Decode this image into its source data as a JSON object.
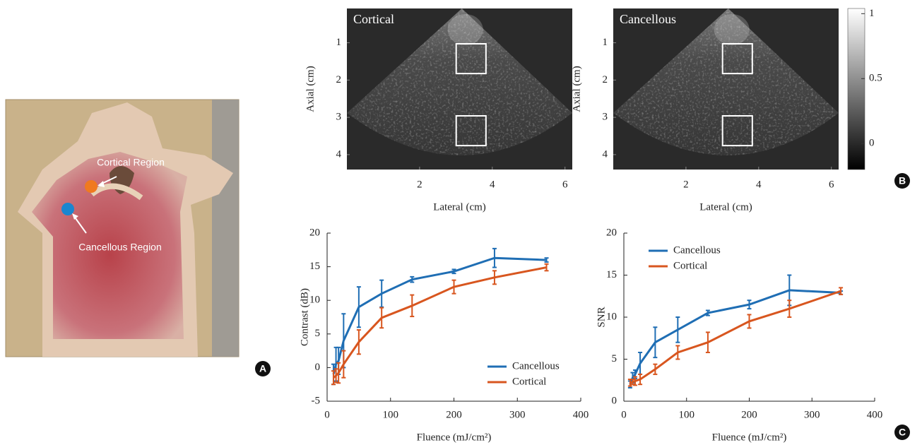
{
  "panel_labels": [
    "A",
    "B",
    "C"
  ],
  "photo": {
    "labels": [
      "Cortical Region",
      "Cancellous Region"
    ]
  },
  "colorbar": {
    "lim": [
      -0.2,
      1.04
    ],
    "ticks": [
      1,
      0.5,
      0
    ]
  },
  "chart_data": [
    {
      "type": "image",
      "title": "Cortical",
      "xlabel": "Lateral (cm)",
      "ylabel": "Axial (cm)",
      "xlim": [
        0,
        6.2
      ],
      "ylim": [
        0.08,
        4.4
      ],
      "xticks": [
        2,
        4,
        6
      ],
      "yticks": [
        1,
        2,
        3,
        4
      ]
    },
    {
      "type": "image",
      "title": "Cancellous",
      "xlabel": "Lateral (cm)",
      "ylabel": "Axial (cm)",
      "xlim": [
        0,
        6.2
      ],
      "ylim": [
        0.08,
        4.4
      ],
      "xticks": [
        2,
        4,
        6
      ],
      "yticks": [
        1,
        2,
        3,
        4
      ]
    },
    {
      "type": "line",
      "xlabel": "Fluence (mJ/cm²)",
      "ylabel": "Contrast (dB)",
      "xlim": [
        0,
        400
      ],
      "ylim": [
        -5,
        20
      ],
      "xticks": [
        0,
        100,
        200,
        300,
        400
      ],
      "yticks": [
        -5,
        0,
        5,
        10,
        15,
        20
      ],
      "legend": "lower right",
      "x": [
        10,
        14,
        18,
        26,
        50,
        86,
        134,
        200,
        264,
        346
      ],
      "series": [
        {
          "name": "Cancellous",
          "color": "#1f6eb4",
          "values": [
            -1,
            0.5,
            1,
            4,
            9,
            11,
            13.1,
            14.3,
            16.3,
            16
          ],
          "errors": [
            1.5,
            2.5,
            2,
            4,
            3,
            2,
            0.4,
            0.3,
            1.4,
            0.3
          ]
        },
        {
          "name": "Cortical",
          "color": "#d8561f",
          "values": [
            -1.5,
            -1.2,
            -0.8,
            0.5,
            3.8,
            7.4,
            9.2,
            12,
            13.4,
            14.9
          ],
          "errors": [
            1,
            1,
            1.5,
            2,
            1.8,
            1.5,
            1.6,
            1,
            1,
            0.5
          ]
        }
      ]
    },
    {
      "type": "line",
      "xlabel": "Fluence (mJ/cm²)",
      "ylabel": "SNR",
      "xlim": [
        0,
        400
      ],
      "ylim": [
        0,
        20
      ],
      "xticks": [
        0,
        100,
        200,
        300,
        400
      ],
      "yticks": [
        0,
        5,
        10,
        15,
        20
      ],
      "legend": "upper left",
      "x": [
        10,
        14,
        18,
        26,
        50,
        86,
        134,
        200,
        264,
        346
      ],
      "series": [
        {
          "name": "Cancellous",
          "color": "#1f6eb4",
          "values": [
            2,
            2.8,
            3.2,
            4.5,
            7,
            8.5,
            10.5,
            11.5,
            13.2,
            12.9
          ],
          "errors": [
            0.4,
            0.6,
            0.5,
            1.3,
            1.8,
            1.5,
            0.3,
            0.5,
            1.8,
            0.2
          ]
        },
        {
          "name": "Cortical",
          "color": "#d8561f",
          "values": [
            2.2,
            2.3,
            2.4,
            2.6,
            3.8,
            5.8,
            7,
            9.5,
            11,
            13.1
          ],
          "errors": [
            0.4,
            0.3,
            0.5,
            0.6,
            0.6,
            0.8,
            1.2,
            0.8,
            1,
            0.4
          ]
        }
      ]
    }
  ]
}
